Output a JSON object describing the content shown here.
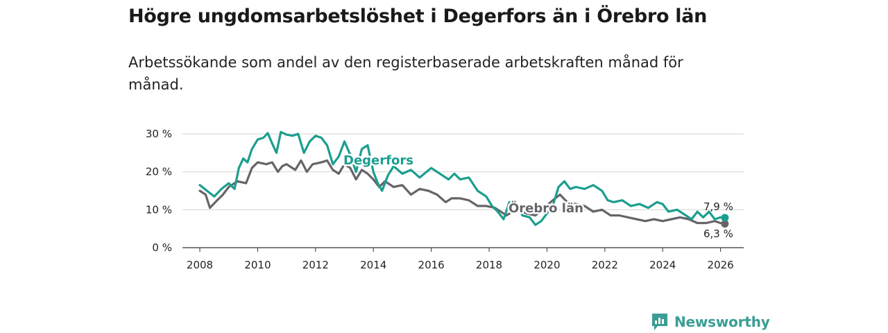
{
  "header": {
    "title": "Högre ungdomsarbetslöshet i Degerfors än i Örebro län",
    "subtitle": "Arbetssökande som andel av den registerbaserade arbetskraften månad för månad."
  },
  "brand": {
    "name": "Newsworthy",
    "color": "#3a9e94"
  },
  "chart_data": {
    "type": "line",
    "title": "Högre ungdomsarbetslöshet i Degerfors än i Örebro län",
    "subtitle": "Arbetssökande som andel av den registerbaserade arbetskraften månad för månad.",
    "xlabel": "",
    "ylabel": "",
    "xlim": [
      2007.4,
      2026.8
    ],
    "ylim": [
      0,
      30
    ],
    "x_ticks": [
      2008,
      2010,
      2012,
      2014,
      2016,
      2018,
      2020,
      2022,
      2024,
      2026
    ],
    "x_tick_labels": [
      "2008",
      "2010",
      "2012",
      "2014",
      "2016",
      "2018",
      "2020",
      "2022",
      "2024",
      "2026"
    ],
    "y_ticks": [
      0,
      10,
      20,
      30
    ],
    "y_tick_labels": [
      "0 %",
      "10 %",
      "20 %",
      "30 %"
    ],
    "grid": true,
    "series": [
      {
        "name": "Degerfors",
        "color": "#1a9e8f",
        "label_text": "Degerfors",
        "end_label": "7,9 %",
        "points": [
          [
            2008.0,
            16.5
          ],
          [
            2008.25,
            15.0
          ],
          [
            2008.5,
            13.5
          ],
          [
            2008.75,
            15.5
          ],
          [
            2009.0,
            17.0
          ],
          [
            2009.2,
            15.5
          ],
          [
            2009.35,
            21.0
          ],
          [
            2009.5,
            23.5
          ],
          [
            2009.65,
            22.5
          ],
          [
            2009.8,
            26.0
          ],
          [
            2010.0,
            28.5
          ],
          [
            2010.2,
            29.0
          ],
          [
            2010.35,
            30.2
          ],
          [
            2010.5,
            27.5
          ],
          [
            2010.65,
            25.0
          ],
          [
            2010.8,
            30.5
          ],
          [
            2011.0,
            29.8
          ],
          [
            2011.2,
            29.5
          ],
          [
            2011.4,
            30.0
          ],
          [
            2011.6,
            25.0
          ],
          [
            2011.8,
            28.0
          ],
          [
            2012.0,
            29.5
          ],
          [
            2012.2,
            29.0
          ],
          [
            2012.4,
            27.0
          ],
          [
            2012.6,
            22.0
          ],
          [
            2012.8,
            24.0
          ],
          [
            2013.0,
            28.0
          ],
          [
            2013.2,
            24.5
          ],
          [
            2013.4,
            20.0
          ],
          [
            2013.6,
            26.0
          ],
          [
            2013.8,
            27.0
          ],
          [
            2014.0,
            20.0
          ],
          [
            2014.15,
            17.0
          ],
          [
            2014.3,
            15.0
          ],
          [
            2014.5,
            19.0
          ],
          [
            2014.7,
            21.5
          ],
          [
            2015.0,
            19.5
          ],
          [
            2015.3,
            20.5
          ],
          [
            2015.6,
            18.5
          ],
          [
            2016.0,
            21.0
          ],
          [
            2016.3,
            19.5
          ],
          [
            2016.6,
            18.0
          ],
          [
            2016.8,
            19.5
          ],
          [
            2017.0,
            18.0
          ],
          [
            2017.3,
            18.5
          ],
          [
            2017.6,
            15.0
          ],
          [
            2017.9,
            13.5
          ],
          [
            2018.1,
            11.0
          ],
          [
            2018.3,
            9.5
          ],
          [
            2018.5,
            7.5
          ],
          [
            2018.7,
            12.0
          ],
          [
            2018.9,
            12.5
          ],
          [
            2019.15,
            8.5
          ],
          [
            2019.4,
            8.0
          ],
          [
            2019.6,
            6.0
          ],
          [
            2019.8,
            7.0
          ],
          [
            2020.0,
            9.0
          ],
          [
            2020.2,
            11.0
          ],
          [
            2020.4,
            16.0
          ],
          [
            2020.6,
            17.5
          ],
          [
            2020.8,
            15.5
          ],
          [
            2021.0,
            16.0
          ],
          [
            2021.3,
            15.5
          ],
          [
            2021.6,
            16.5
          ],
          [
            2021.9,
            15.0
          ],
          [
            2022.1,
            12.5
          ],
          [
            2022.3,
            12.0
          ],
          [
            2022.6,
            12.5
          ],
          [
            2022.9,
            11.0
          ],
          [
            2023.2,
            11.5
          ],
          [
            2023.5,
            10.5
          ],
          [
            2023.8,
            12.0
          ],
          [
            2024.0,
            11.5
          ],
          [
            2024.2,
            9.5
          ],
          [
            2024.5,
            10.0
          ],
          [
            2024.8,
            8.5
          ],
          [
            2025.0,
            7.5
          ],
          [
            2025.2,
            9.5
          ],
          [
            2025.4,
            8.0
          ],
          [
            2025.6,
            9.5
          ],
          [
            2025.8,
            7.5
          ],
          [
            2026.0,
            8.0
          ],
          [
            2026.15,
            7.9
          ]
        ]
      },
      {
        "name": "Örebro län",
        "color": "#666469",
        "label_text": "Örebro län",
        "end_label": "6,3 %",
        "points": [
          [
            2008.0,
            15.0
          ],
          [
            2008.2,
            14.0
          ],
          [
            2008.35,
            10.5
          ],
          [
            2008.6,
            12.5
          ],
          [
            2008.8,
            14.0
          ],
          [
            2009.0,
            16.0
          ],
          [
            2009.3,
            17.5
          ],
          [
            2009.6,
            17.0
          ],
          [
            2009.8,
            21.0
          ],
          [
            2010.0,
            22.5
          ],
          [
            2010.3,
            22.0
          ],
          [
            2010.5,
            22.5
          ],
          [
            2010.7,
            20.0
          ],
          [
            2010.85,
            21.5
          ],
          [
            2011.0,
            22.0
          ],
          [
            2011.3,
            20.5
          ],
          [
            2011.5,
            23.0
          ],
          [
            2011.7,
            20.0
          ],
          [
            2011.9,
            22.0
          ],
          [
            2012.2,
            22.5
          ],
          [
            2012.4,
            23.0
          ],
          [
            2012.6,
            20.5
          ],
          [
            2012.8,
            19.5
          ],
          [
            2013.0,
            22.0
          ],
          [
            2013.2,
            21.0
          ],
          [
            2013.4,
            18.0
          ],
          [
            2013.6,
            20.5
          ],
          [
            2013.8,
            19.5
          ],
          [
            2014.0,
            18.0
          ],
          [
            2014.2,
            16.0
          ],
          [
            2014.4,
            17.5
          ],
          [
            2014.7,
            16.0
          ],
          [
            2015.0,
            16.5
          ],
          [
            2015.3,
            14.0
          ],
          [
            2015.6,
            15.5
          ],
          [
            2015.9,
            15.0
          ],
          [
            2016.2,
            14.0
          ],
          [
            2016.5,
            12.0
          ],
          [
            2016.7,
            13.0
          ],
          [
            2017.0,
            13.0
          ],
          [
            2017.3,
            12.5
          ],
          [
            2017.6,
            11.0
          ],
          [
            2017.9,
            11.0
          ],
          [
            2018.2,
            10.5
          ],
          [
            2018.4,
            9.5
          ],
          [
            2018.6,
            8.5
          ],
          [
            2018.8,
            9.5
          ],
          [
            2019.0,
            10.0
          ],
          [
            2019.3,
            9.0
          ],
          [
            2019.6,
            8.5
          ],
          [
            2019.9,
            10.5
          ],
          [
            2020.2,
            12.5
          ],
          [
            2020.45,
            14.0
          ],
          [
            2020.7,
            12.0
          ],
          [
            2021.0,
            11.5
          ],
          [
            2021.3,
            11.0
          ],
          [
            2021.6,
            9.5
          ],
          [
            2021.9,
            10.0
          ],
          [
            2022.2,
            8.5
          ],
          [
            2022.5,
            8.5
          ],
          [
            2022.8,
            8.0
          ],
          [
            2023.1,
            7.5
          ],
          [
            2023.4,
            7.0
          ],
          [
            2023.7,
            7.5
          ],
          [
            2024.0,
            7.0
          ],
          [
            2024.3,
            7.5
          ],
          [
            2024.6,
            8.0
          ],
          [
            2024.9,
            7.5
          ],
          [
            2025.2,
            6.5
          ],
          [
            2025.5,
            6.5
          ],
          [
            2025.8,
            7.0
          ],
          [
            2026.0,
            6.5
          ],
          [
            2026.15,
            6.3
          ]
        ]
      }
    ]
  }
}
